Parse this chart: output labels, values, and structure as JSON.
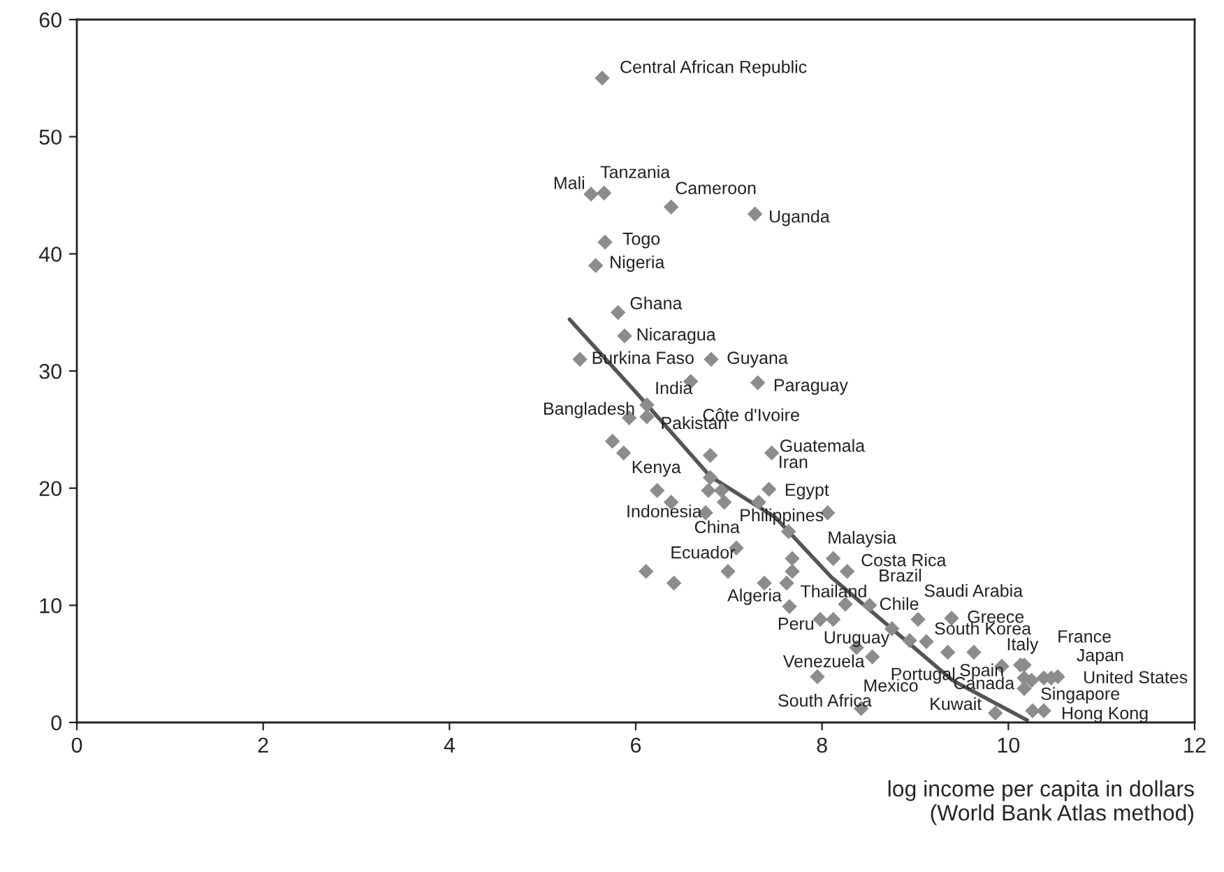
{
  "chart_data": {
    "type": "scatter",
    "xlabel": "log income per capita in dollars\n(World Bank Atlas method)",
    "xlim": [
      0,
      12
    ],
    "xticks": [
      0,
      2,
      4,
      6,
      8,
      10,
      12
    ],
    "ylim": [
      0,
      60
    ],
    "yticks": [
      0,
      10,
      20,
      30,
      40,
      50,
      60
    ],
    "grid": false,
    "series": [
      {
        "marker": "diamond",
        "color": "#8c8c8c",
        "x": [
          5.64,
          5.52,
          5.66,
          6.38,
          7.28,
          5.67,
          5.57,
          5.81,
          5.88,
          5.4,
          6.81,
          6.59,
          7.31,
          6.12,
          6.12,
          5.93,
          5.75,
          5.87,
          6.8,
          7.46,
          6.8,
          6.23,
          6.38,
          6.78,
          6.92,
          6.95,
          7.43,
          7.32,
          6.75,
          8.06,
          7.64,
          7.08,
          7.68,
          8.12,
          7.68,
          8.27,
          6.11,
          6.41,
          6.99,
          7.38,
          7.62,
          7.65,
          7.98,
          8.12,
          8.25,
          8.51,
          9.03,
          9.39,
          8.75,
          8.94,
          9.12,
          8.37,
          8.54,
          9.35,
          9.63,
          9.93,
          10.13,
          10.17,
          10.17,
          10.25,
          10.38,
          10.46,
          10.53,
          10.17,
          10.26,
          10.38,
          7.95,
          8.42,
          9.86
        ],
        "values": [
          55.0,
          45.1,
          45.2,
          44.0,
          43.4,
          41.0,
          39.0,
          35.0,
          33.0,
          31.0,
          31.0,
          29.1,
          29.0,
          27.1,
          26.1,
          26.0,
          24.0,
          23.0,
          22.8,
          23.0,
          20.9,
          19.8,
          18.8,
          19.8,
          19.8,
          18.8,
          19.9,
          18.8,
          17.9,
          17.9,
          16.3,
          14.9,
          14.0,
          14.0,
          12.9,
          12.9,
          12.9,
          11.9,
          12.9,
          11.9,
          11.9,
          9.9,
          8.8,
          8.8,
          10.1,
          10.0,
          8.8,
          8.9,
          8.0,
          7.0,
          6.9,
          6.4,
          5.6,
          6.0,
          6.0,
          4.8,
          4.9,
          4.9,
          3.8,
          3.6,
          3.8,
          3.8,
          3.9,
          2.9,
          1.0,
          1.0,
          3.9,
          1.2,
          0.8
        ]
      },
      {
        "type": "line",
        "color": "#555555",
        "x": [
          5.29,
          6.0,
          6.8,
          7.5,
          8.1,
          8.75,
          9.4,
          10.2
        ],
        "values": [
          34.4,
          28.2,
          21.0,
          17.5,
          12.4,
          8.0,
          3.6,
          0.2
        ]
      }
    ],
    "annotations": [
      {
        "text": "Central African Republic",
        "x": 5.64,
        "y": 55.0
      },
      {
        "text": "Mali",
        "x": 5.52,
        "y": 45.1
      },
      {
        "text": "Tanzania",
        "x": 5.66,
        "y": 45.2
      },
      {
        "text": "Cameroon",
        "x": 6.38,
        "y": 44.0
      },
      {
        "text": "Uganda",
        "x": 7.28,
        "y": 43.4
      },
      {
        "text": "Togo",
        "x": 5.67,
        "y": 41.0
      },
      {
        "text": "Nigeria",
        "x": 5.57,
        "y": 39.0
      },
      {
        "text": "Ghana",
        "x": 5.81,
        "y": 35.0
      },
      {
        "text": "Nicaragua",
        "x": 5.88,
        "y": 33.0
      },
      {
        "text": "Burkina Faso",
        "x": 5.4,
        "y": 31.0
      },
      {
        "text": "Guyana",
        "x": 6.81,
        "y": 31.0
      },
      {
        "text": "Côte d'Ivoire",
        "x": 6.59,
        "y": 29.1
      },
      {
        "text": "Paraguay",
        "x": 7.31,
        "y": 29.0
      },
      {
        "text": "India",
        "x": 6.12,
        "y": 27.1
      },
      {
        "text": "Pakistan",
        "x": 6.12,
        "y": 26.1
      },
      {
        "text": "Bangladesh",
        "x": 5.93,
        "y": 26.0
      },
      {
        "text": "Kenya",
        "x": 5.87,
        "y": 23.0
      },
      {
        "text": "Guatemala",
        "x": 7.46,
        "y": 23.0
      },
      {
        "text": "Iran",
        "x": 7.32,
        "y": 18.8
      },
      {
        "text": "Egypt",
        "x": 7.43,
        "y": 19.9
      },
      {
        "text": "Indonesia",
        "x": 6.75,
        "y": 17.9
      },
      {
        "text": "Philippines",
        "x": 8.06,
        "y": 17.9
      },
      {
        "text": "China",
        "x": 7.08,
        "y": 14.9
      },
      {
        "text": "Malaysia",
        "x": 8.12,
        "y": 14.0
      },
      {
        "text": "Costa Rica",
        "x": 8.27,
        "y": 12.9
      },
      {
        "text": "Ecuador",
        "x": 6.99,
        "y": 12.9
      },
      {
        "text": "Thailand",
        "x": 7.62,
        "y": 11.9
      },
      {
        "text": "Algeria",
        "x": 7.65,
        "y": 9.9
      },
      {
        "text": "Peru",
        "x": 7.98,
        "y": 8.8
      },
      {
        "text": "Uruguay",
        "x": 8.12,
        "y": 8.8
      },
      {
        "text": "Brazil",
        "x": 8.25,
        "y": 10.1
      },
      {
        "text": "Chile",
        "x": 8.51,
        "y": 10.0
      },
      {
        "text": "Saudi Arabia",
        "x": 9.03,
        "y": 8.8
      },
      {
        "text": "Greece",
        "x": 9.39,
        "y": 8.9
      },
      {
        "text": "South Korea",
        "x": 9.12,
        "y": 6.9
      },
      {
        "text": "Venezuela",
        "x": 8.54,
        "y": 5.6
      },
      {
        "text": "Portugal",
        "x": 9.35,
        "y": 6.0
      },
      {
        "text": "Spain",
        "x": 9.63,
        "y": 6.0
      },
      {
        "text": "Italy",
        "x": 10.13,
        "y": 4.9
      },
      {
        "text": "France",
        "x": 10.17,
        "y": 4.9
      },
      {
        "text": "Japan",
        "x": 10.46,
        "y": 3.8
      },
      {
        "text": "United States",
        "x": 10.53,
        "y": 3.9
      },
      {
        "text": "Canada",
        "x": 10.17,
        "y": 2.9
      },
      {
        "text": "Singapore",
        "x": 10.26,
        "y": 1.0
      },
      {
        "text": "Hong Kong",
        "x": 10.38,
        "y": 1.0
      },
      {
        "text": "South Africa",
        "x": 7.95,
        "y": 3.9
      },
      {
        "text": "Mexico",
        "x": 8.42,
        "y": 1.2
      },
      {
        "text": "Kuwait",
        "x": 9.86,
        "y": 0.8
      }
    ]
  }
}
